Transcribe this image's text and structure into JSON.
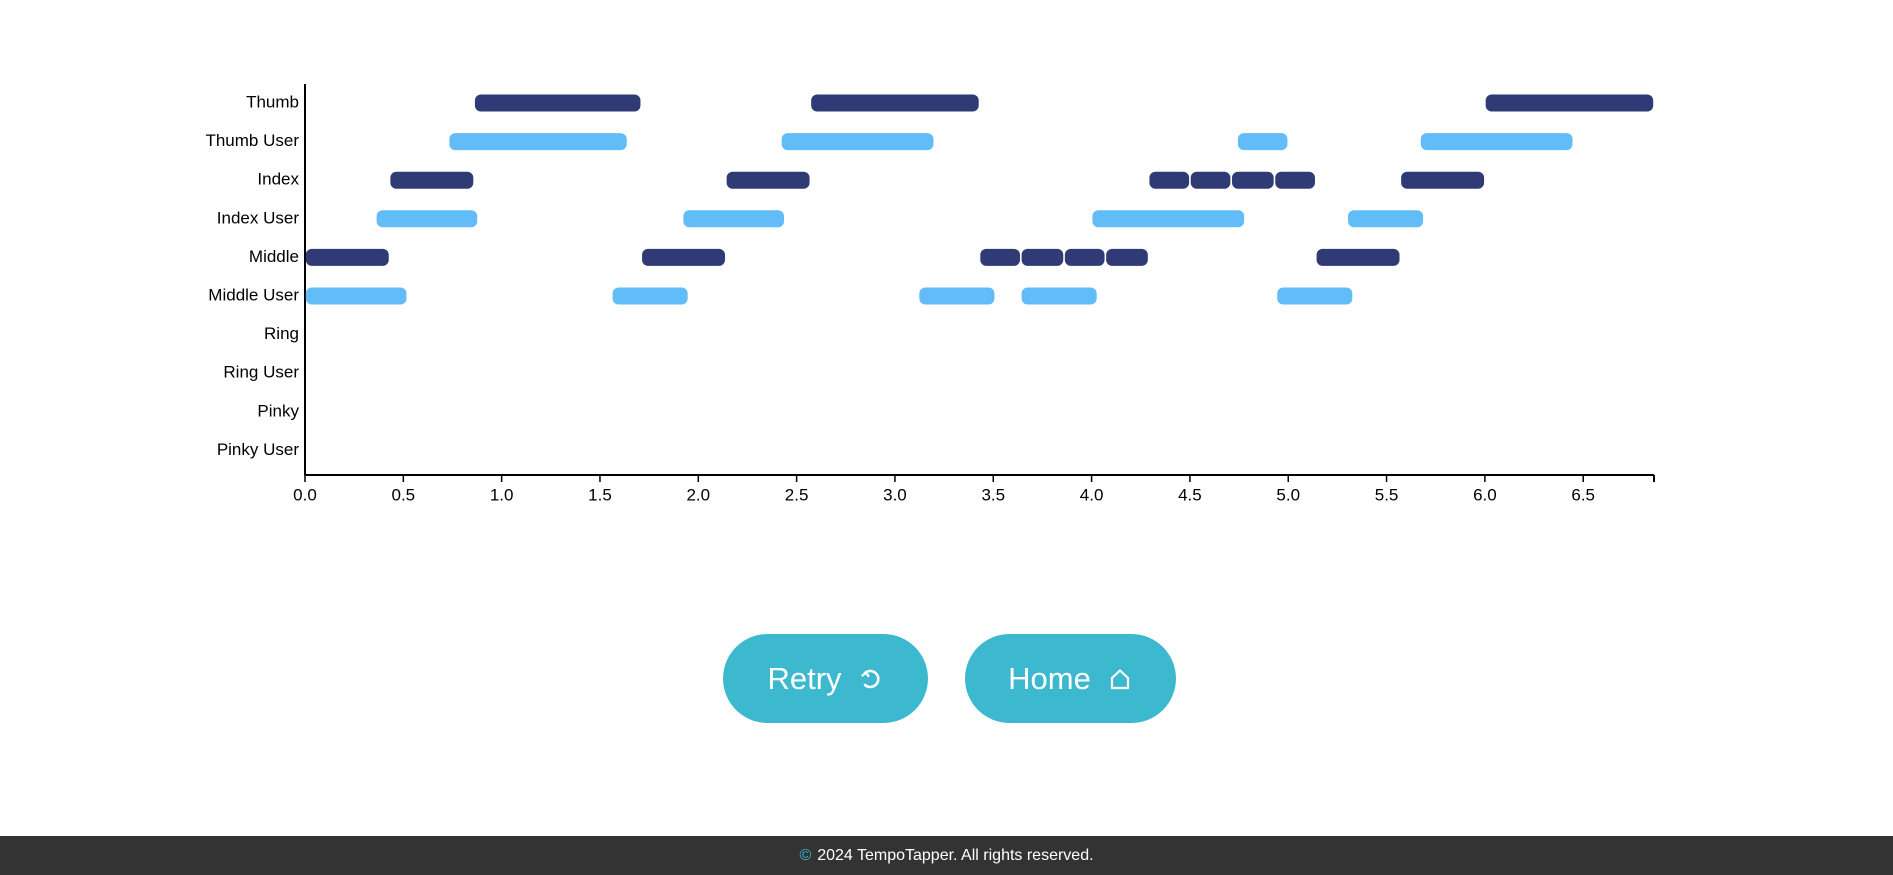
{
  "colors": {
    "target_bar": "#303a74",
    "user_bar": "#62bcf8",
    "button_bg": "#3db9cf",
    "footer_bg": "#333333",
    "copyright_symbol": "#3db9cf"
  },
  "chart_data": {
    "type": "timeline",
    "rows": [
      "Thumb",
      "Thumb User",
      "Index",
      "Index User",
      "Middle",
      "Middle User",
      "Ring",
      "Ring User",
      "Pinky",
      "Pinky User"
    ],
    "x_ticks": [
      "0.0",
      "0.5",
      "1.0",
      "1.5",
      "2.0",
      "2.5",
      "3.0",
      "3.5",
      "4.0",
      "4.5",
      "5.0",
      "5.5",
      "6.0",
      "6.5"
    ],
    "xlim": [
      0,
      6.86
    ],
    "grid": false,
    "segments": [
      {
        "row": "Thumb",
        "start": 0.86,
        "end": 1.71
      },
      {
        "row": "Thumb",
        "start": 2.57,
        "end": 3.43
      },
      {
        "row": "Thumb",
        "start": 6.0,
        "end": 6.86
      },
      {
        "row": "Thumb User",
        "start": 0.73,
        "end": 1.64
      },
      {
        "row": "Thumb User",
        "start": 2.42,
        "end": 3.2
      },
      {
        "row": "Thumb User",
        "start": 4.74,
        "end": 5.0
      },
      {
        "row": "Thumb User",
        "start": 5.67,
        "end": 6.45
      },
      {
        "row": "Index",
        "start": 0.43,
        "end": 0.86
      },
      {
        "row": "Index",
        "start": 2.14,
        "end": 2.57
      },
      {
        "row": "Index",
        "start": 4.29,
        "end": 4.5
      },
      {
        "row": "Index",
        "start": 4.5,
        "end": 4.71
      },
      {
        "row": "Index",
        "start": 4.71,
        "end": 4.93
      },
      {
        "row": "Index",
        "start": 4.93,
        "end": 5.14
      },
      {
        "row": "Index",
        "start": 5.57,
        "end": 6.0
      },
      {
        "row": "Index User",
        "start": 0.36,
        "end": 0.88
      },
      {
        "row": "Index User",
        "start": 1.92,
        "end": 2.44
      },
      {
        "row": "Index User",
        "start": 4.0,
        "end": 4.78
      },
      {
        "row": "Index User",
        "start": 5.3,
        "end": 5.69
      },
      {
        "row": "Middle",
        "start": 0.0,
        "end": 0.43
      },
      {
        "row": "Middle",
        "start": 1.71,
        "end": 2.14
      },
      {
        "row": "Middle",
        "start": 3.43,
        "end": 3.64
      },
      {
        "row": "Middle",
        "start": 3.64,
        "end": 3.86
      },
      {
        "row": "Middle",
        "start": 3.86,
        "end": 4.07
      },
      {
        "row": "Middle",
        "start": 4.07,
        "end": 4.29
      },
      {
        "row": "Middle",
        "start": 5.14,
        "end": 5.57
      },
      {
        "row": "Middle User",
        "start": 0.0,
        "end": 0.52
      },
      {
        "row": "Middle User",
        "start": 1.56,
        "end": 1.95
      },
      {
        "row": "Middle User",
        "start": 3.12,
        "end": 3.51
      },
      {
        "row": "Middle User",
        "start": 3.64,
        "end": 4.03
      },
      {
        "row": "Middle User",
        "start": 4.94,
        "end": 5.33
      }
    ]
  },
  "buttons": {
    "retry_label": "Retry",
    "retry_icon": "retry-icon",
    "home_label": "Home",
    "home_icon": "home-icon"
  },
  "footer": {
    "copyright_symbol": "©",
    "text": "2024 TempoTapper. All rights reserved."
  }
}
